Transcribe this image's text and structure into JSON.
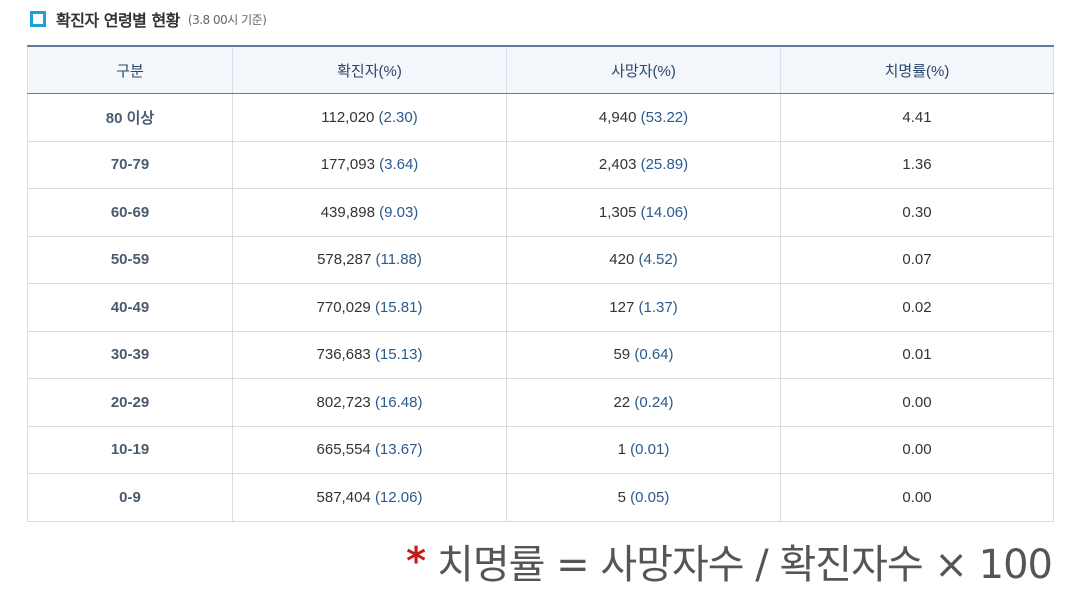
{
  "header": {
    "title": "확진자 연령별 현황",
    "note": "(3.8 00시 기준)"
  },
  "table": {
    "columns": [
      "구분",
      "확진자(%)",
      "사망자(%)",
      "치명률(%)"
    ],
    "rows": [
      {
        "age": "80 이상",
        "confirmed": "112,020",
        "confirmed_pct": "(2.30)",
        "deaths": "4,940",
        "deaths_pct": "(53.22)",
        "fatality": "4.41"
      },
      {
        "age": "70-79",
        "confirmed": "177,093",
        "confirmed_pct": "(3.64)",
        "deaths": "2,403",
        "deaths_pct": "(25.89)",
        "fatality": "1.36"
      },
      {
        "age": "60-69",
        "confirmed": "439,898",
        "confirmed_pct": "(9.03)",
        "deaths": "1,305",
        "deaths_pct": "(14.06)",
        "fatality": "0.30"
      },
      {
        "age": "50-59",
        "confirmed": "578,287",
        "confirmed_pct": "(11.88)",
        "deaths": "420",
        "deaths_pct": "(4.52)",
        "fatality": "0.07"
      },
      {
        "age": "40-49",
        "confirmed": "770,029",
        "confirmed_pct": "(15.81)",
        "deaths": "127",
        "deaths_pct": "(1.37)",
        "fatality": "0.02"
      },
      {
        "age": "30-39",
        "confirmed": "736,683",
        "confirmed_pct": "(15.13)",
        "deaths": "59",
        "deaths_pct": "(0.64)",
        "fatality": "0.01"
      },
      {
        "age": "20-29",
        "confirmed": "802,723",
        "confirmed_pct": "(16.48)",
        "deaths": "22",
        "deaths_pct": "(0.24)",
        "fatality": "0.00"
      },
      {
        "age": "10-19",
        "confirmed": "665,554",
        "confirmed_pct": "(13.67)",
        "deaths": "1",
        "deaths_pct": "(0.01)",
        "fatality": "0.00"
      },
      {
        "age": "0-9",
        "confirmed": "587,404",
        "confirmed_pct": "(12.06)",
        "deaths": "5",
        "deaths_pct": "(0.05)",
        "fatality": "0.00"
      }
    ]
  },
  "footnote": {
    "star": "*",
    "formula": "치명률 = 사망자수 / 확진자수 × 100"
  },
  "colors": {
    "accent_icon": "#1aa3d6",
    "header_bg": "#f3f6fa",
    "header_border": "#5c7fa3",
    "value_blue": "#2a5a8c",
    "star_red": "#c8181c"
  },
  "icons": {
    "title_marker": "square-bullet-icon"
  }
}
